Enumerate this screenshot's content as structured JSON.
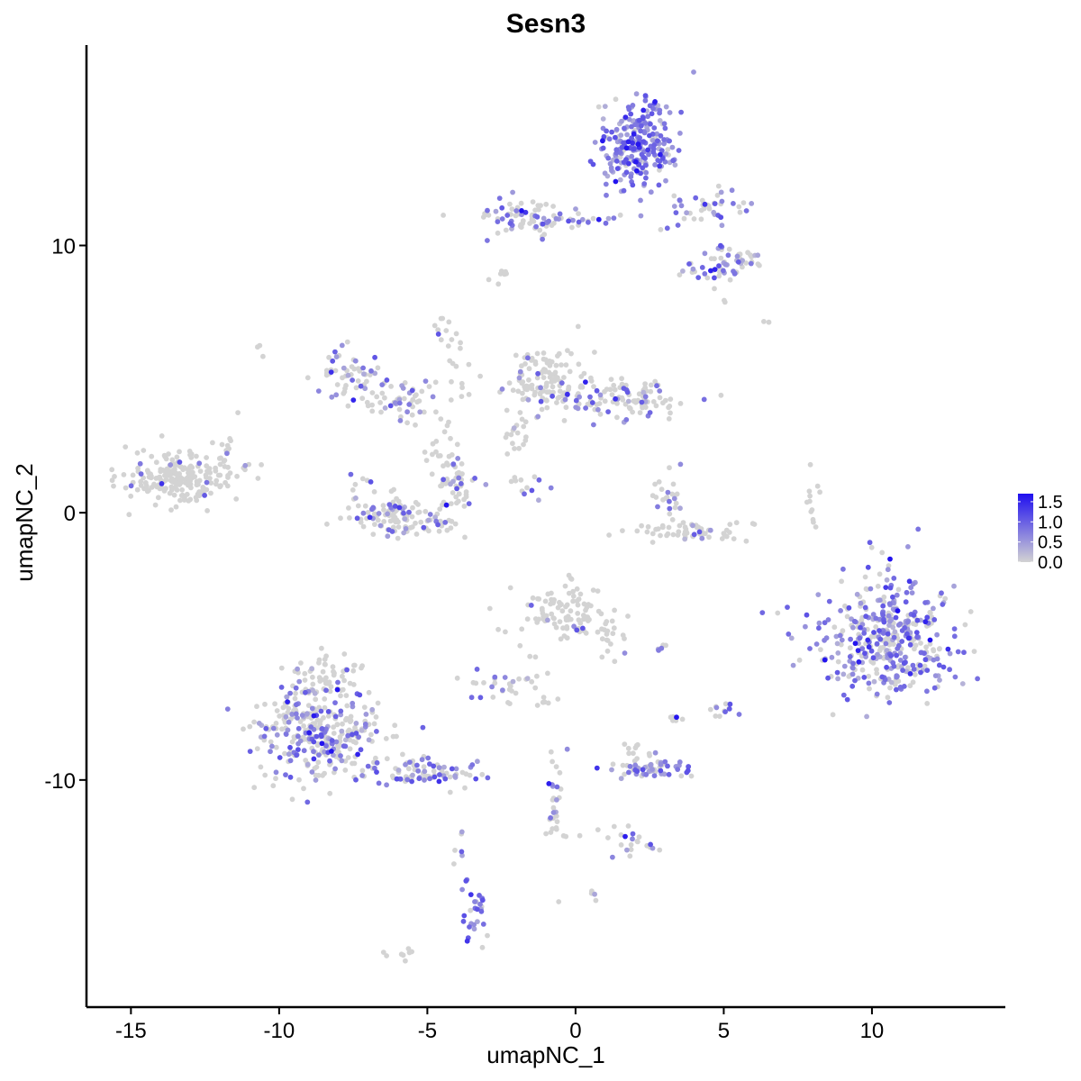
{
  "chart_data": {
    "type": "scatter",
    "title": "Sesn3",
    "xlabel": "umapNC_1",
    "ylabel": "umapNC_2",
    "xlim": [
      -16.5,
      14.5
    ],
    "ylim": [
      -18.5,
      17.5
    ],
    "x_ticks": [
      -15,
      -10,
      -5,
      0,
      5,
      10
    ],
    "x_tick_labels": [
      "-15",
      "-10",
      "-5",
      "0",
      "5",
      "10"
    ],
    "y_ticks": [
      -10,
      0,
      10
    ],
    "y_tick_labels": [
      "-10",
      "0",
      "10"
    ],
    "grid": false,
    "legend_position": "right",
    "color_scale": {
      "low": "#d3d3d3",
      "high": "#1f0fef",
      "min": 0,
      "max": 1.7,
      "breaks": [
        0.0,
        0.5,
        1.0,
        1.5
      ],
      "break_labels": [
        "0.0",
        "0.5",
        "1.0",
        "1.5"
      ]
    },
    "clusters": [
      {
        "x": 2.1,
        "y": 13.7,
        "sx": 0.7,
        "sy": 0.8,
        "n": 260,
        "expr": 0.9
      },
      {
        "x": -1.8,
        "y": 11.1,
        "sx": 0.8,
        "sy": 0.3,
        "n": 70,
        "expr": 0.45
      },
      {
        "x": 0.3,
        "y": 11.0,
        "sx": 1.1,
        "sy": 0.2,
        "n": 22,
        "expr": 0.4
      },
      {
        "x": 4.4,
        "y": 11.5,
        "sx": 0.7,
        "sy": 0.3,
        "n": 40,
        "expr": 0.5
      },
      {
        "x": 5.3,
        "y": 9.5,
        "sx": 0.5,
        "sy": 0.3,
        "n": 45,
        "expr": 0.65
      },
      {
        "x": 4.4,
        "y": 9.0,
        "sx": 0.4,
        "sy": 0.3,
        "n": 18,
        "expr": 0.45
      },
      {
        "x": -2.7,
        "y": 8.9,
        "sx": 0.2,
        "sy": 0.1,
        "n": 8,
        "expr": 0.0
      },
      {
        "x": -13.4,
        "y": 1.3,
        "sx": 1.0,
        "sy": 0.5,
        "n": 220,
        "expr": 0.05
      },
      {
        "x": -11.8,
        "y": 2.2,
        "sx": 0.3,
        "sy": 0.4,
        "n": 14,
        "expr": 0.05
      },
      {
        "x": -7.5,
        "y": 5.2,
        "sx": 0.7,
        "sy": 0.6,
        "n": 60,
        "expr": 0.4
      },
      {
        "x": -5.7,
        "y": 4.1,
        "sx": 0.7,
        "sy": 0.4,
        "n": 50,
        "expr": 0.4
      },
      {
        "x": -4.5,
        "y": 6.9,
        "sx": 0.2,
        "sy": 0.4,
        "n": 10,
        "expr": 0.3
      },
      {
        "x": -4.0,
        "y": 5.2,
        "sx": 0.3,
        "sy": 0.8,
        "n": 12,
        "expr": 0.05
      },
      {
        "x": -6.0,
        "y": -0.2,
        "sx": 0.9,
        "sy": 0.4,
        "n": 120,
        "expr": 0.25
      },
      {
        "x": -4.1,
        "y": 1.0,
        "sx": 0.5,
        "sy": 0.6,
        "n": 50,
        "expr": 0.2
      },
      {
        "x": -7.0,
        "y": 0.6,
        "sx": 0.3,
        "sy": 0.4,
        "n": 15,
        "expr": 0.4
      },
      {
        "x": -4.5,
        "y": 2.5,
        "sx": 0.3,
        "sy": 0.5,
        "n": 14,
        "expr": 0.05
      },
      {
        "x": -1.1,
        "y": 5.0,
        "sx": 0.6,
        "sy": 0.6,
        "n": 120,
        "expr": 0.1
      },
      {
        "x": 1.5,
        "y": 4.3,
        "sx": 1.2,
        "sy": 0.4,
        "n": 110,
        "expr": 0.3
      },
      {
        "x": -2.0,
        "y": 2.8,
        "sx": 0.3,
        "sy": 0.5,
        "n": 20,
        "expr": 0.05
      },
      {
        "x": -1.8,
        "y": 1.3,
        "sx": 0.3,
        "sy": 0.1,
        "n": 6,
        "expr": 0.1
      },
      {
        "x": -1.5,
        "y": 0.8,
        "sx": 0.3,
        "sy": 0.2,
        "n": 6,
        "expr": 0.5
      },
      {
        "x": 3.7,
        "y": -0.7,
        "sx": 0.9,
        "sy": 0.2,
        "n": 60,
        "expr": 0.15
      },
      {
        "x": 3.2,
        "y": 0.6,
        "sx": 0.3,
        "sy": 0.6,
        "n": 24,
        "expr": 0.35
      },
      {
        "x": 8.0,
        "y": 0.2,
        "sx": 0.1,
        "sy": 0.6,
        "n": 12,
        "expr": 0.0
      },
      {
        "x": 10.5,
        "y": -4.7,
        "sx": 1.1,
        "sy": 1.1,
        "n": 420,
        "expr": 0.65
      },
      {
        "x": -0.3,
        "y": -3.7,
        "sx": 0.8,
        "sy": 0.5,
        "n": 100,
        "expr": 0.05
      },
      {
        "x": 1.1,
        "y": -4.5,
        "sx": 0.3,
        "sy": 0.5,
        "n": 20,
        "expr": 0.1
      },
      {
        "x": -2.5,
        "y": -6.6,
        "sx": 0.5,
        "sy": 0.3,
        "n": 24,
        "expr": 0.3
      },
      {
        "x": -1.5,
        "y": -5.5,
        "sx": 0.3,
        "sy": 0.6,
        "n": 10,
        "expr": 0.1
      },
      {
        "x": -8.7,
        "y": -8.3,
        "sx": 1.1,
        "sy": 0.9,
        "n": 330,
        "expr": 0.4
      },
      {
        "x": -8.6,
        "y": -6.2,
        "sx": 0.6,
        "sy": 0.6,
        "n": 60,
        "expr": 0.2
      },
      {
        "x": -5.1,
        "y": -9.8,
        "sx": 0.9,
        "sy": 0.3,
        "n": 80,
        "expr": 0.5
      },
      {
        "x": 2.5,
        "y": -9.6,
        "sx": 0.6,
        "sy": 0.15,
        "n": 60,
        "expr": 0.55
      },
      {
        "x": 2.1,
        "y": -9.0,
        "sx": 0.3,
        "sy": 0.2,
        "n": 12,
        "expr": 0.1
      },
      {
        "x": -0.6,
        "y": -11.1,
        "sx": 0.2,
        "sy": 1.2,
        "n": 30,
        "expr": 0.35
      },
      {
        "x": 2.2,
        "y": -12.5,
        "sx": 0.5,
        "sy": 0.2,
        "n": 16,
        "expr": 0.45
      },
      {
        "x": 0.8,
        "y": -11.9,
        "sx": 0.8,
        "sy": 0.2,
        "n": 8,
        "expr": 0.05
      },
      {
        "x": -3.4,
        "y": -14.8,
        "sx": 0.2,
        "sy": 0.7,
        "n": 28,
        "expr": 0.8
      },
      {
        "x": -3.9,
        "y": -12.4,
        "sx": 0.1,
        "sy": 0.4,
        "n": 6,
        "expr": 0.4
      },
      {
        "x": 5.0,
        "y": -7.4,
        "sx": 0.3,
        "sy": 0.2,
        "n": 12,
        "expr": 0.55
      },
      {
        "x": 3.3,
        "y": -7.7,
        "sx": 0.2,
        "sy": 0.1,
        "n": 6,
        "expr": 0.4
      },
      {
        "x": 2.9,
        "y": -5.0,
        "sx": 0.2,
        "sy": 0.1,
        "n": 5,
        "expr": 0.3
      },
      {
        "x": -0.9,
        "y": -7.1,
        "sx": 0.3,
        "sy": 0.1,
        "n": 5,
        "expr": 0.0
      },
      {
        "x": -5.8,
        "y": -16.5,
        "sx": 0.3,
        "sy": 0.2,
        "n": 8,
        "expr": 0.0
      },
      {
        "x": 0.6,
        "y": -14.3,
        "sx": 0.1,
        "sy": 0.1,
        "n": 4,
        "expr": 0.1
      },
      {
        "x": 6.6,
        "y": 7.1,
        "sx": 0.1,
        "sy": 0.1,
        "n": 2,
        "expr": 0.0
      },
      {
        "x": -10.5,
        "y": 6.1,
        "sx": 0.1,
        "sy": 0.1,
        "n": 3,
        "expr": 0.0
      },
      {
        "x": 5.0,
        "y": 8.0,
        "sx": 0.1,
        "sy": 0.1,
        "n": 2,
        "expr": 0.0
      }
    ]
  }
}
